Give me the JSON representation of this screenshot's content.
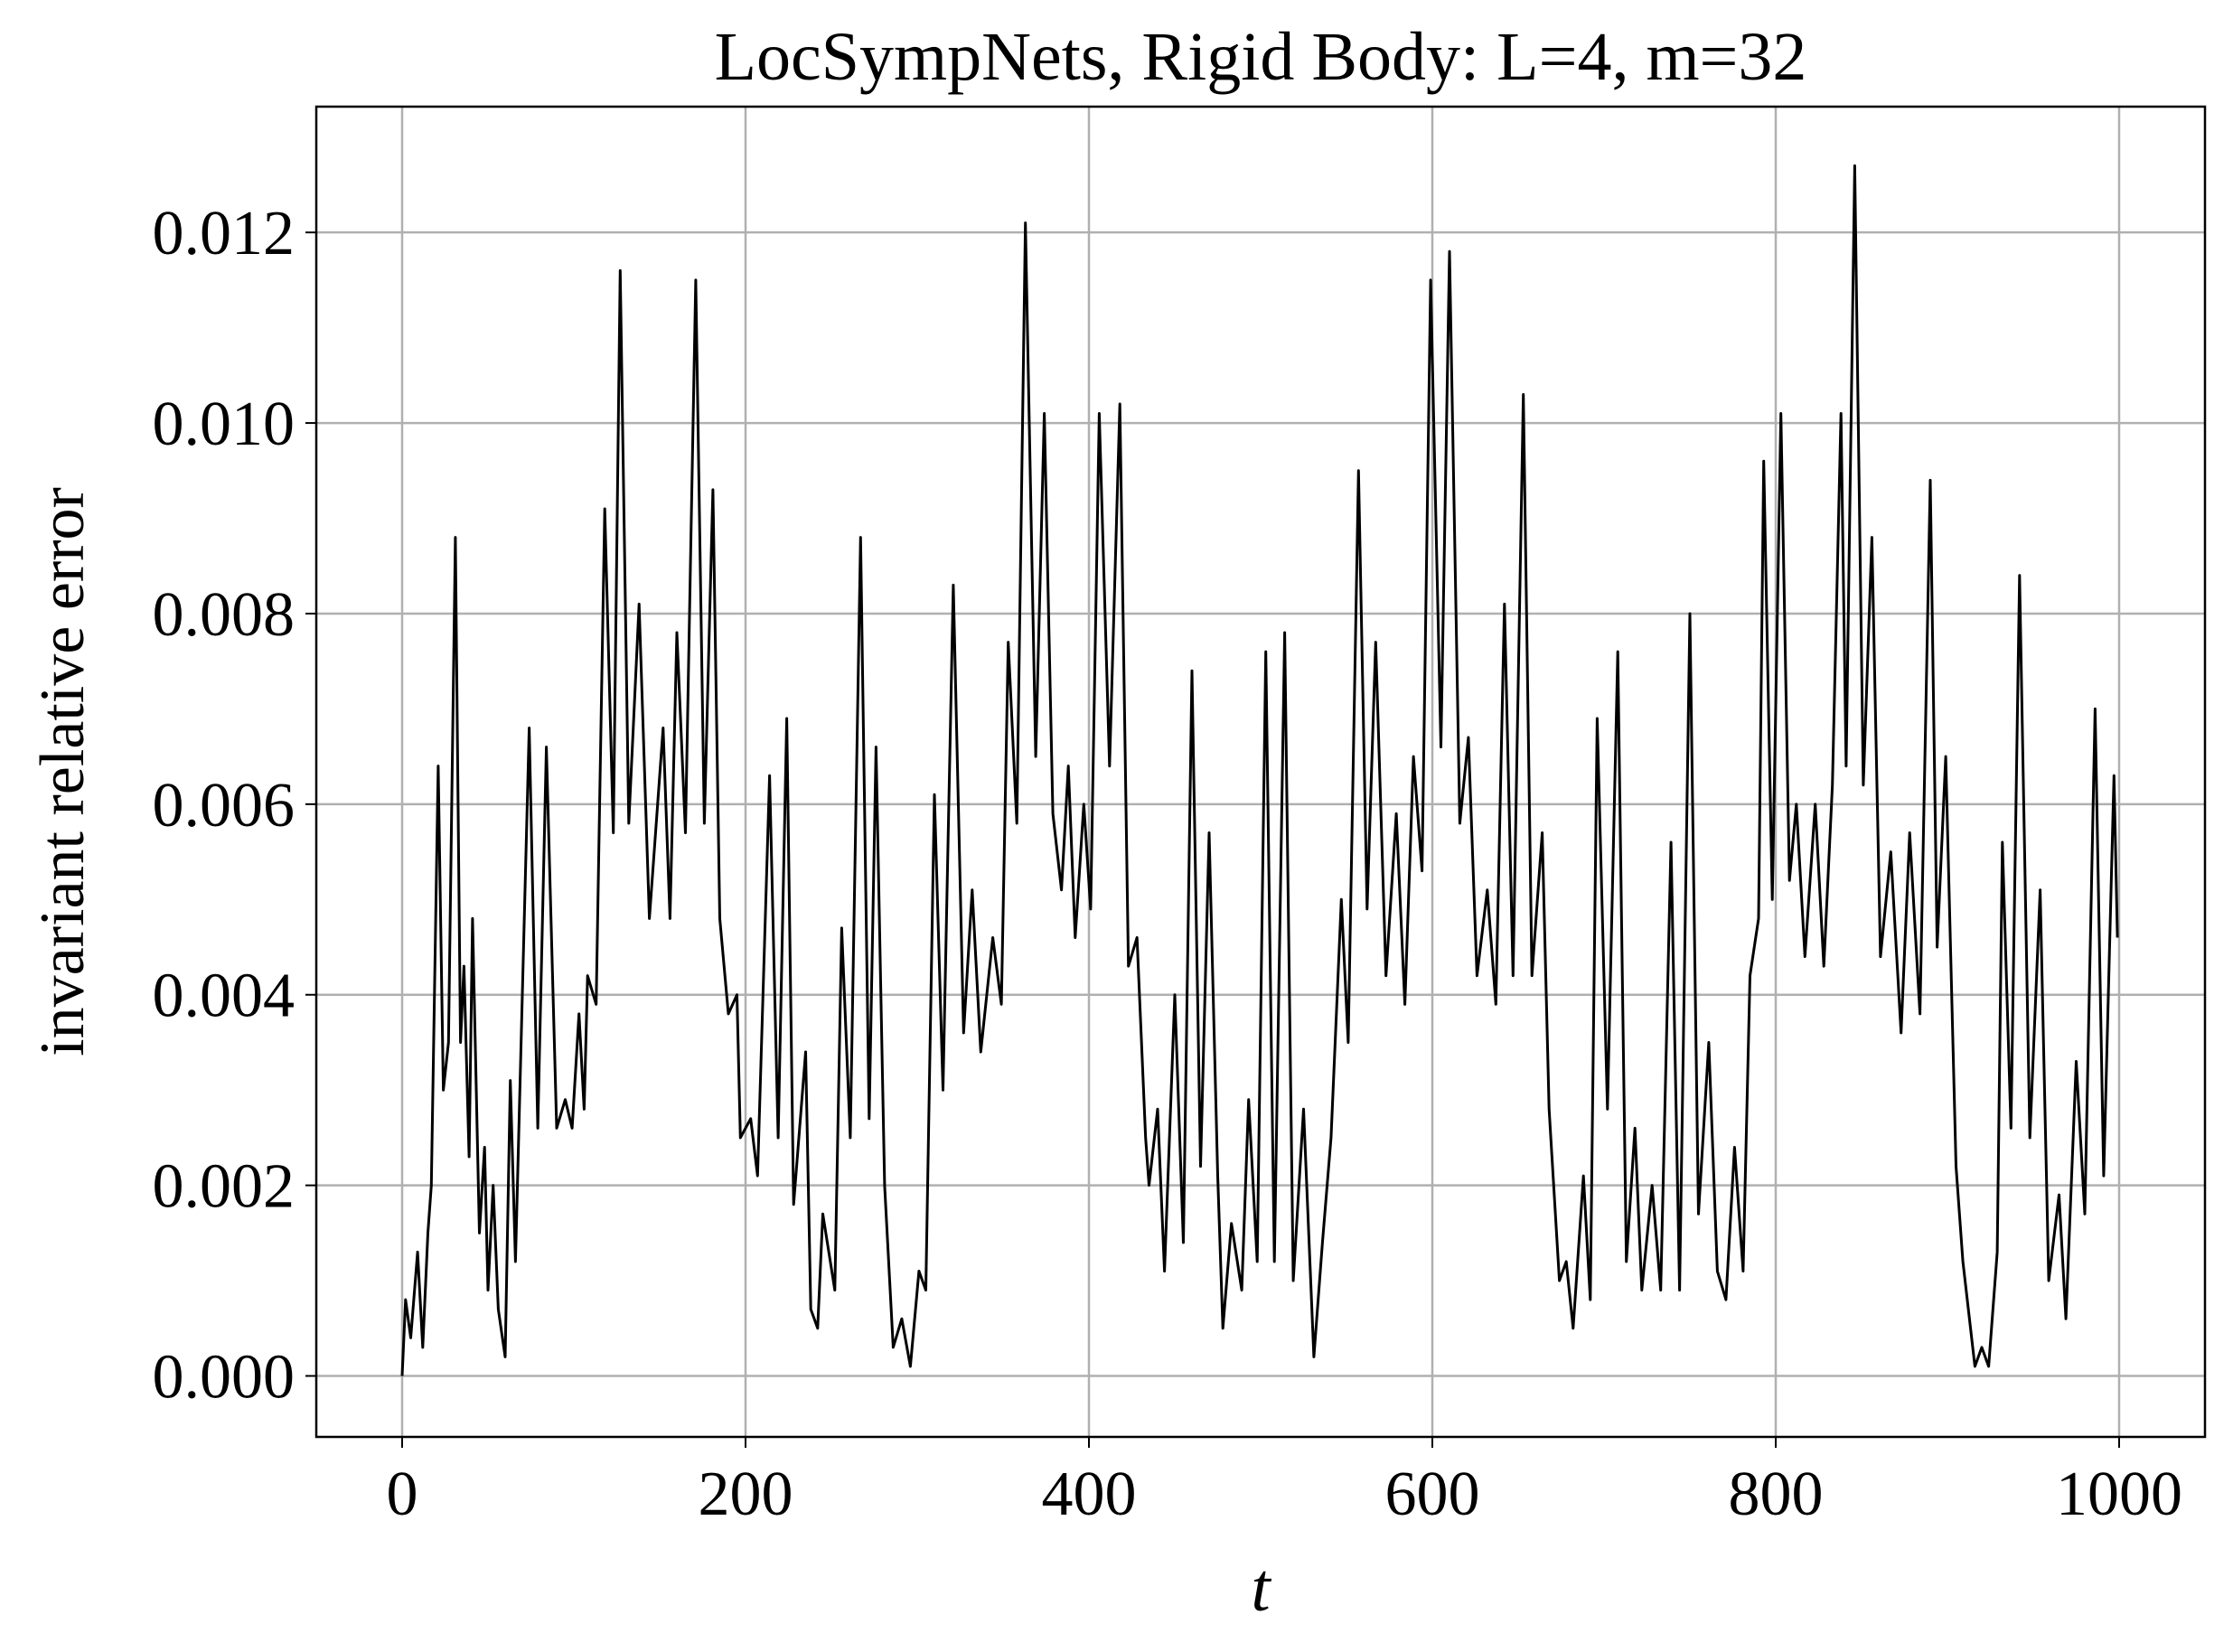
{
  "chart_data": {
    "type": "line",
    "title": "LocSympNets, Rigid Body: L=4, m=32",
    "x_label": "t",
    "y_label": "invariant relative error",
    "grid": true,
    "xlim": [
      -50,
      1050
    ],
    "ylim": [
      -0.00064,
      0.01332
    ],
    "xticks": [
      0,
      200,
      400,
      600,
      800,
      1000
    ],
    "yticks": [
      {
        "value": 0,
        "label": "0.000"
      },
      {
        "value": 0.002,
        "label": "0.002"
      },
      {
        "value": 0.004,
        "label": "0.004"
      },
      {
        "value": 0.006,
        "label": "0.006"
      },
      {
        "value": 0.008,
        "label": "0.008"
      },
      {
        "value": 0.01,
        "label": "0.010"
      },
      {
        "value": 0.012,
        "label": "0.012"
      }
    ],
    "x": [
      0,
      2,
      5,
      9,
      12,
      15,
      17,
      21,
      24,
      27,
      31,
      34,
      36,
      39,
      41,
      45,
      48,
      50,
      53,
      56,
      60,
      63,
      66,
      74,
      79,
      84,
      90,
      95,
      99,
      103,
      106,
      108,
      113,
      118,
      123,
      127,
      132,
      138,
      144,
      148,
      152,
      156,
      160,
      165,
      171,
      176,
      181,
      185,
      190,
      195,
      197,
      203,
      207,
      214,
      219,
      224,
      228,
      235,
      238,
      242,
      245,
      252,
      256,
      261,
      267,
      272,
      276,
      281,
      286,
      291,
      296,
      301,
      305,
      310,
      315,
      321,
      327,
      332,
      337,
      344,
      349,
      353,
      358,
      363,
      369,
      374,
      379,
      384,
      388,
      392,
      397,
      401,
      406,
      412,
      418,
      423,
      428,
      433,
      435,
      440,
      444,
      450,
      455,
      460,
      465,
      470,
      475,
      478,
      483,
      489,
      493,
      498,
      503,
      508,
      514,
      519,
      525,
      531,
      536,
      541,
      547,
      551,
      557,
      562,
      567,
      573,
      579,
      584,
      589,
      594,
      599,
      605,
      610,
      616,
      621,
      626,
      632,
      637,
      642,
      647,
      653,
      658,
      664,
      668,
      674,
      678,
      682,
      688,
      692,
      696,
      702,
      708,
      713,
      718,
      722,
      728,
      733,
      739,
      744,
      750,
      755,
      761,
      766,
      771,
      776,
      781,
      785,
      790,
      793,
      798,
      803,
      808,
      812,
      817,
      823,
      828,
      833,
      838,
      841,
      846,
      851,
      856,
      861,
      867,
      873,
      878,
      884,
      890,
      894,
      899,
      905,
      909,
      916,
      920,
      924,
      929,
      932,
      937,
      942,
      948,
      954,
      959,
      965,
      969,
      975,
      980,
      986,
      991,
      997,
      999
    ],
    "series": [
      {
        "name": "invariant relative error",
        "color": "#000000",
        "values": [
          0,
          0.0008,
          0.0004,
          0.0013,
          0.0003,
          0.0015,
          0.002,
          0.0064,
          0.003,
          0.0035,
          0.0088,
          0.0035,
          0.0043,
          0.0023,
          0.0048,
          0.0015,
          0.0024,
          0.0009,
          0.002,
          0.0007,
          0.0002,
          0.0031,
          0.0012,
          0.0068,
          0.0026,
          0.0066,
          0.0026,
          0.0029,
          0.0026,
          0.0038,
          0.0028,
          0.0042,
          0.0039,
          0.0091,
          0.0057,
          0.0116,
          0.0058,
          0.0081,
          0.0048,
          0.0058,
          0.0068,
          0.0048,
          0.0078,
          0.0057,
          0.0115,
          0.0058,
          0.0093,
          0.0048,
          0.0038,
          0.004,
          0.0025,
          0.0027,
          0.0021,
          0.0063,
          0.0025,
          0.0069,
          0.0018,
          0.0034,
          0.0007,
          0.0005,
          0.0017,
          0.0009,
          0.0047,
          0.0025,
          0.0088,
          0.0027,
          0.0066,
          0.002,
          0.0003,
          0.0006,
          0.0001,
          0.0011,
          0.0009,
          0.0061,
          0.003,
          0.0083,
          0.0036,
          0.0051,
          0.0034,
          0.0046,
          0.0039,
          0.0077,
          0.0058,
          0.0121,
          0.0065,
          0.0101,
          0.0059,
          0.0051,
          0.0064,
          0.0046,
          0.006,
          0.0049,
          0.0101,
          0.0064,
          0.0102,
          0.0043,
          0.0046,
          0.0025,
          0.002,
          0.0028,
          0.0011,
          0.004,
          0.0014,
          0.0074,
          0.0022,
          0.0057,
          0.0021,
          0.0005,
          0.0016,
          0.0009,
          0.0029,
          0.0012,
          0.0076,
          0.0012,
          0.0078,
          0.001,
          0.0028,
          0.0002,
          0.0014,
          0.0025,
          0.005,
          0.0035,
          0.0095,
          0.0049,
          0.0077,
          0.0042,
          0.0059,
          0.0039,
          0.0065,
          0.0053,
          0.0115,
          0.0066,
          0.0118,
          0.0058,
          0.0067,
          0.0042,
          0.0051,
          0.0039,
          0.0081,
          0.0042,
          0.0103,
          0.0042,
          0.0057,
          0.0028,
          0.001,
          0.0012,
          0.0005,
          0.0021,
          0.0008,
          0.0069,
          0.0028,
          0.0076,
          0.0012,
          0.0026,
          0.0009,
          0.002,
          0.0009,
          0.0056,
          0.0009,
          0.008,
          0.0017,
          0.0035,
          0.0011,
          0.0008,
          0.0024,
          0.0011,
          0.0042,
          0.0048,
          0.0096,
          0.005,
          0.0101,
          0.0052,
          0.006,
          0.0044,
          0.006,
          0.0043,
          0.0062,
          0.0101,
          0.0064,
          0.0127,
          0.0062,
          0.0088,
          0.0044,
          0.0055,
          0.0036,
          0.0057,
          0.0038,
          0.0094,
          0.0045,
          0.0065,
          0.0022,
          0.0012,
          0.0001,
          0.0003,
          0.0001,
          0.0013,
          0.0056,
          0.0026,
          0.0084,
          0.0025,
          0.0051,
          0.001,
          0.0019,
          0.0006,
          0.0033,
          0.0017,
          0.007,
          0.0021,
          0.0063,
          0.0046
        ]
      }
    ]
  }
}
